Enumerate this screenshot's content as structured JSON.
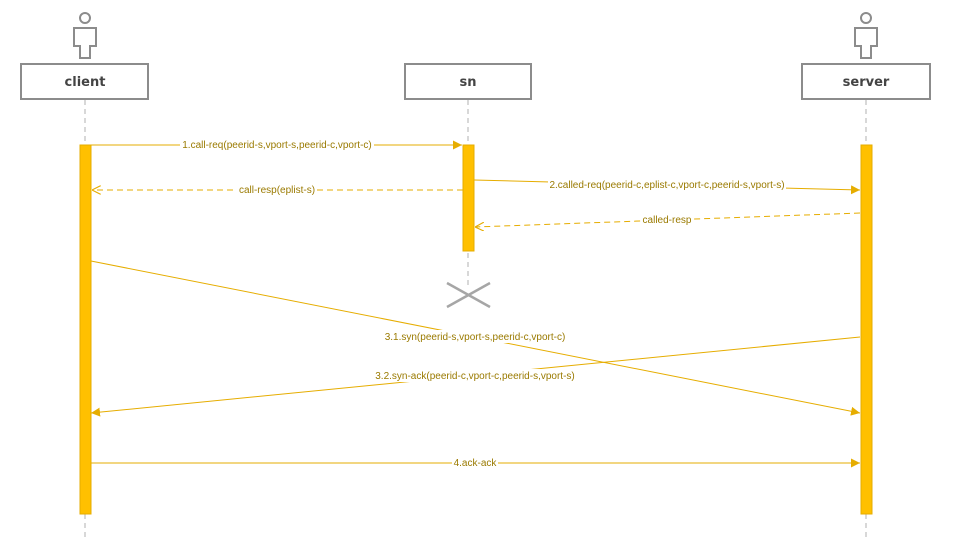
{
  "participants": [
    {
      "id": "client",
      "label": "client"
    },
    {
      "id": "sn",
      "label": "sn"
    },
    {
      "id": "server",
      "label": "server"
    }
  ],
  "messages": [
    {
      "id": "m1",
      "label": "1.call-req(peerid-s,vport-s,peerid-c,vport-c)",
      "from": "client",
      "to": "sn",
      "style": "solid"
    },
    {
      "id": "m2",
      "label": "call-resp(eplist-s)",
      "from": "sn",
      "to": "client",
      "style": "dashed"
    },
    {
      "id": "m3",
      "label": "2.called-req(peerid-c,eplist-c,vport-c,peerid-s,vport-s)",
      "from": "sn",
      "to": "server",
      "style": "solid"
    },
    {
      "id": "m4",
      "label": "called-resp",
      "from": "server",
      "to": "sn",
      "style": "dashed"
    },
    {
      "id": "m5",
      "label": "3.1.syn(peerid-s,vport-s,peerid-c,vport-c)",
      "from": "client",
      "to": "server",
      "style": "solid"
    },
    {
      "id": "m6",
      "label": "3.2.syn-ack(peerid-c,vport-c,peerid-s,vport-s)",
      "from": "server",
      "to": "client",
      "style": "solid"
    },
    {
      "id": "m7",
      "label": "4.ack-ack",
      "from": "client",
      "to": "server",
      "style": "solid"
    }
  ],
  "colors": {
    "activation": "#ffc000",
    "arrow": "#e6ad00",
    "label": "#9a7a00",
    "header_border": "#8c8c8c",
    "actor": "#8c8c8c",
    "lifeline": "#b0b0b0"
  },
  "icons": {
    "actor": "person-icon",
    "destroy": "destroy-x-icon"
  }
}
